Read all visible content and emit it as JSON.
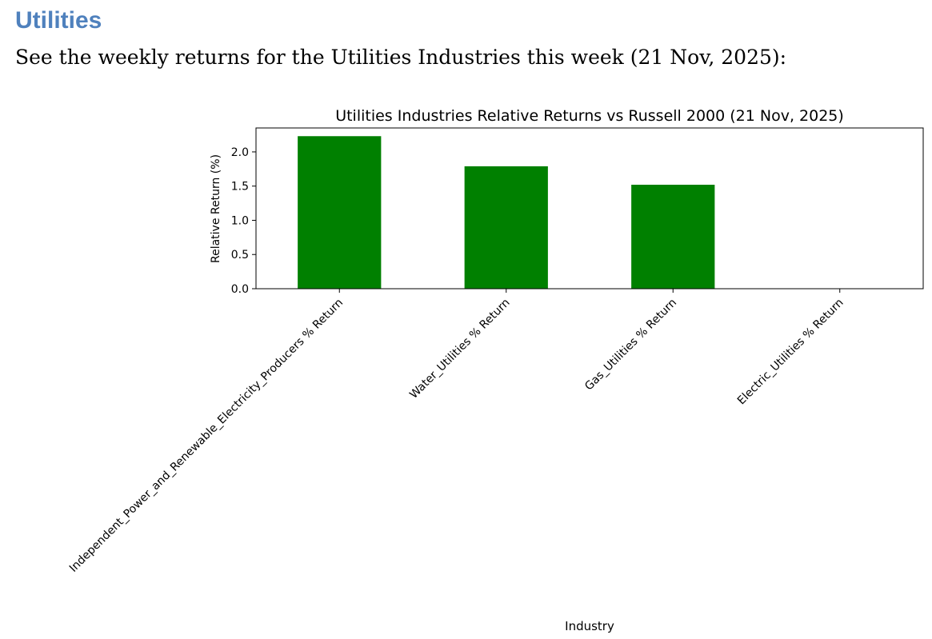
{
  "document": {
    "heading": "Utilities",
    "intro": "See the weekly returns for the Utilities Industries this week (21 Nov, 2025):"
  },
  "chart_data": {
    "type": "bar",
    "title": "Utilities Industries Relative Returns vs Russell 2000 (21 Nov, 2025)",
    "xlabel": "Industry",
    "ylabel": "Relative Return (%)",
    "categories": [
      "Independent_Power_and_Renewable_Electricity_Producers % Return",
      "Water_Utilities % Return",
      "Gas_Utilities % Return",
      "Electric_Utilities % Return"
    ],
    "values": [
      2.23,
      1.79,
      1.52,
      0.0
    ],
    "ylim": [
      0,
      2.35
    ],
    "yticks": [
      "0.0",
      "0.5",
      "1.0",
      "1.5",
      "2.0"
    ],
    "bar_color": "#008000",
    "grid": false,
    "legend": "none"
  }
}
